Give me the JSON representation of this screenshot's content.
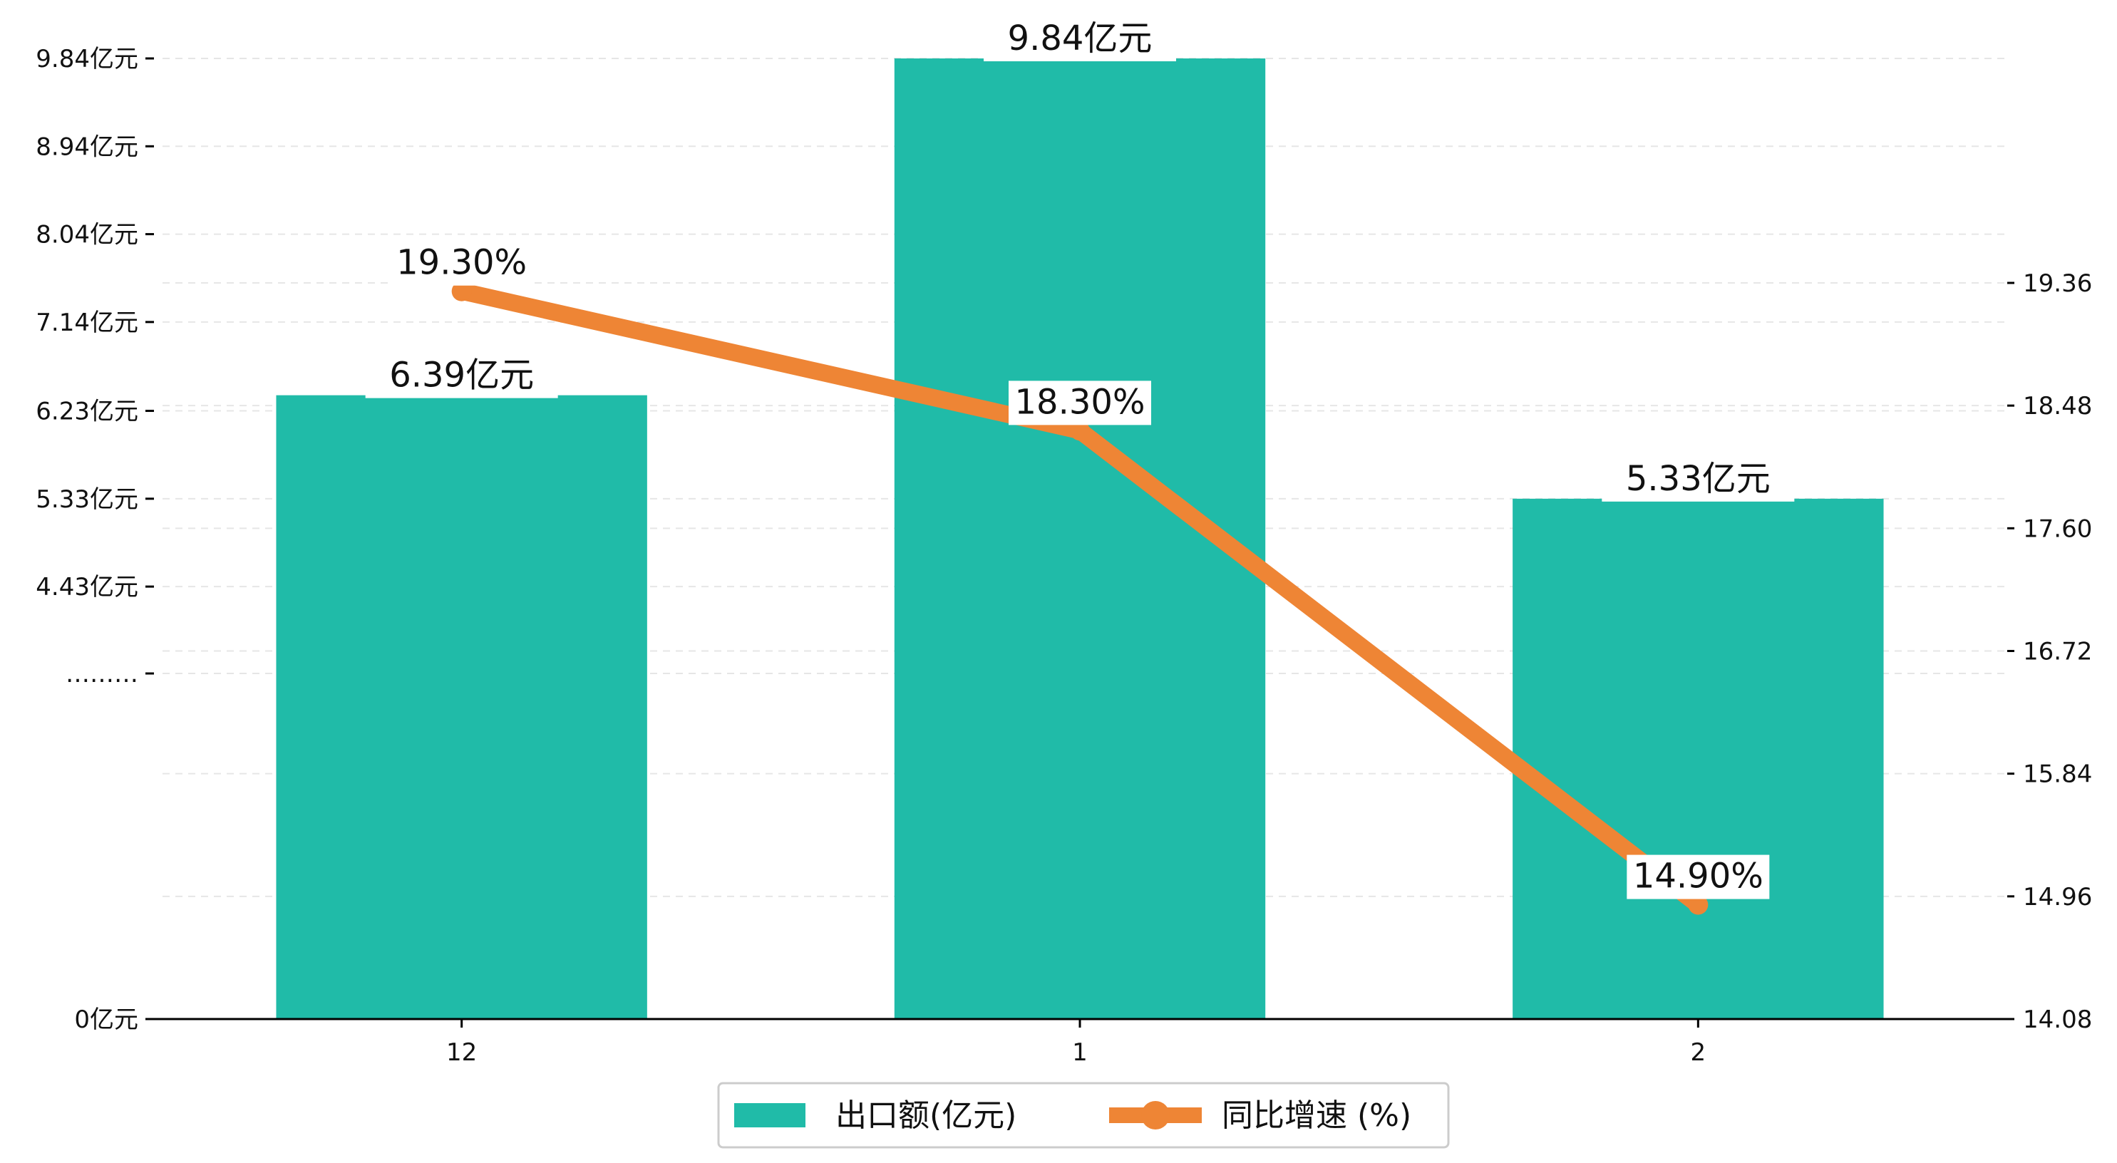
{
  "chart_data": {
    "type": "bar+line",
    "categories": [
      "12",
      "1",
      "2"
    ],
    "series": [
      {
        "name": "出口额(亿元)",
        "type": "bar",
        "axis": "left",
        "values": [
          6.39,
          9.84,
          5.33
        ],
        "labels": [
          "6.39亿元",
          "9.84亿元",
          "5.33亿元"
        ],
        "color": "#20bba8"
      },
      {
        "name": "同比增速 (%)",
        "type": "line",
        "axis": "right",
        "values": [
          19.3,
          18.3,
          14.9
        ],
        "labels": [
          "19.30%",
          "18.30%",
          "14.90%"
        ],
        "color": "#ee8535"
      }
    ],
    "left_axis": {
      "ylim": [
        0,
        9.84
      ],
      "ticks": [
        {
          "value": 0,
          "label": "0亿元"
        },
        {
          "value": 3.54,
          "label": "………"
        },
        {
          "value": 4.43,
          "label": "4.43亿元"
        },
        {
          "value": 5.33,
          "label": "5.33亿元"
        },
        {
          "value": 6.23,
          "label": "6.23亿元"
        },
        {
          "value": 7.14,
          "label": "7.14亿元"
        },
        {
          "value": 8.04,
          "label": "8.04亿元"
        },
        {
          "value": 8.94,
          "label": "8.94亿元"
        },
        {
          "value": 9.84,
          "label": "9.84亿元"
        }
      ]
    },
    "right_axis": {
      "ylim": [
        14.08,
        20.97
      ],
      "ticks": [
        {
          "value": 14.08,
          "label": "14.08"
        },
        {
          "value": 14.96,
          "label": "14.96"
        },
        {
          "value": 15.84,
          "label": "15.84"
        },
        {
          "value": 16.72,
          "label": "16.72"
        },
        {
          "value": 17.6,
          "label": "17.60"
        },
        {
          "value": 18.48,
          "label": "18.48"
        },
        {
          "value": 19.36,
          "label": "19.36"
        }
      ]
    },
    "grid": "horizontal dashed",
    "legend": "bottom-center",
    "colors": {
      "bar": "#20bba8",
      "line": "#ee8535",
      "axis": "#000000",
      "grid": "#e6e6e6"
    }
  }
}
